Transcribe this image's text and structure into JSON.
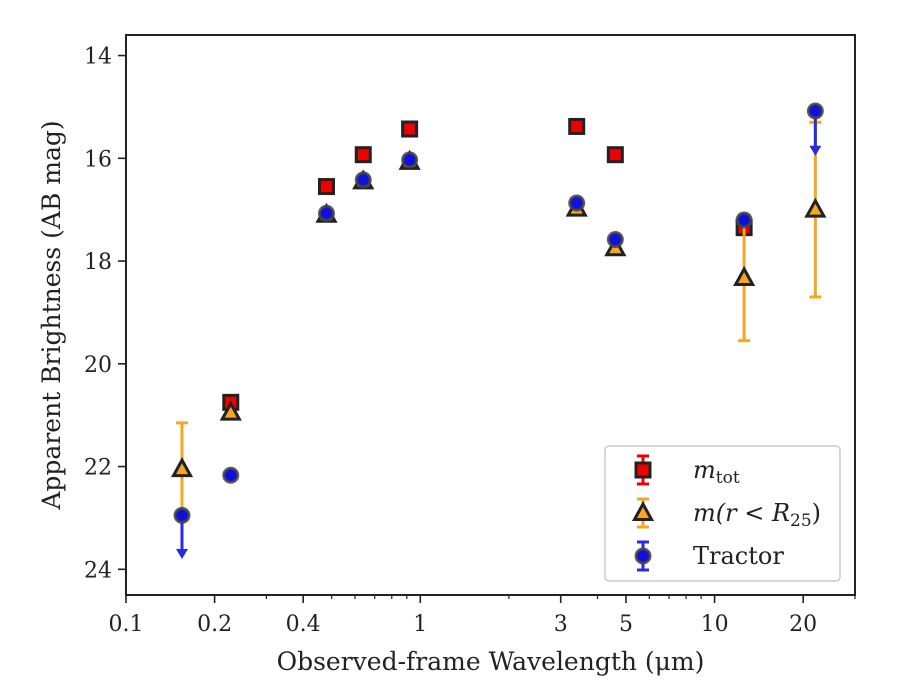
{
  "chart_data": {
    "type": "scatter",
    "xlabel": "Observed-frame Wavelength (μm)",
    "ylabel": "Apparent Brightness (AB mag)",
    "xscale": "log",
    "xlim": [
      0.1,
      30
    ],
    "ylim": [
      24.5,
      13.6
    ],
    "y_inverted": true,
    "x_ticks": [
      {
        "value": 0.1,
        "label": "0.1"
      },
      {
        "value": 0.2,
        "label": "0.2"
      },
      {
        "value": 0.4,
        "label": "0.4"
      },
      {
        "value": 1,
        "label": "1"
      },
      {
        "value": 3,
        "label": "3"
      },
      {
        "value": 5,
        "label": "5"
      },
      {
        "value": 10,
        "label": "10"
      },
      {
        "value": 20,
        "label": "20"
      }
    ],
    "y_ticks": [
      {
        "value": 14,
        "label": "14"
      },
      {
        "value": 16,
        "label": "16"
      },
      {
        "value": 18,
        "label": "18"
      },
      {
        "value": 20,
        "label": "20"
      },
      {
        "value": 22,
        "label": "22"
      },
      {
        "value": 24,
        "label": "24"
      }
    ],
    "grid": false,
    "legend_position": "lower-right",
    "series": [
      {
        "name": "m_tot",
        "legend_main": "m",
        "legend_sub": "tot",
        "marker": "square",
        "color": "#ee0000",
        "edge_color": "#222222",
        "errorbar_color": "#ee0000",
        "points": [
          {
            "x": 0.227,
            "y": 20.75
          },
          {
            "x": 0.48,
            "y": 16.55
          },
          {
            "x": 0.64,
            "y": 15.93
          },
          {
            "x": 0.92,
            "y": 15.43
          },
          {
            "x": 3.4,
            "y": 15.38
          },
          {
            "x": 4.6,
            "y": 15.93
          },
          {
            "x": 12.6,
            "y": 17.35
          }
        ]
      },
      {
        "name": "m(r < R25)",
        "legend_main": "m(r < R",
        "legend_sub": "25",
        "legend_tail": ")",
        "marker": "triangle",
        "color": "#f5a623",
        "edge_color": "#222222",
        "errorbar_color": "#f5a623",
        "points": [
          {
            "x": 0.155,
            "y": 22.05,
            "yerr_low": 21.15,
            "yerr_high": 22.95
          },
          {
            "x": 0.227,
            "y": 20.95
          },
          {
            "x": 0.48,
            "y": 17.1
          },
          {
            "x": 0.64,
            "y": 16.45
          },
          {
            "x": 0.92,
            "y": 16.07
          },
          {
            "x": 3.4,
            "y": 16.98
          },
          {
            "x": 4.6,
            "y": 17.75
          },
          {
            "x": 12.6,
            "y": 18.33,
            "yerr_low": 17.1,
            "yerr_high": 19.55
          },
          {
            "x": 22.0,
            "y": 17.0,
            "yerr_low": 15.3,
            "yerr_high": 18.7
          }
        ]
      },
      {
        "name": "Tractor",
        "legend_main": "Tractor",
        "marker": "circle",
        "color": "#1010dd",
        "edge_color": "#444444",
        "errorbar_color": "#2a2ae0",
        "points": [
          {
            "x": 0.155,
            "y": 22.95,
            "upper_limit": true,
            "arrow_to": 23.8
          },
          {
            "x": 0.227,
            "y": 22.17
          },
          {
            "x": 0.48,
            "y": 17.07
          },
          {
            "x": 0.64,
            "y": 16.42
          },
          {
            "x": 0.92,
            "y": 16.03
          },
          {
            "x": 3.4,
            "y": 16.87
          },
          {
            "x": 4.6,
            "y": 17.58
          },
          {
            "x": 12.6,
            "y": 17.2
          },
          {
            "x": 22.0,
            "y": 15.08,
            "upper_limit": true,
            "arrow_to": 15.95
          }
        ]
      }
    ]
  }
}
